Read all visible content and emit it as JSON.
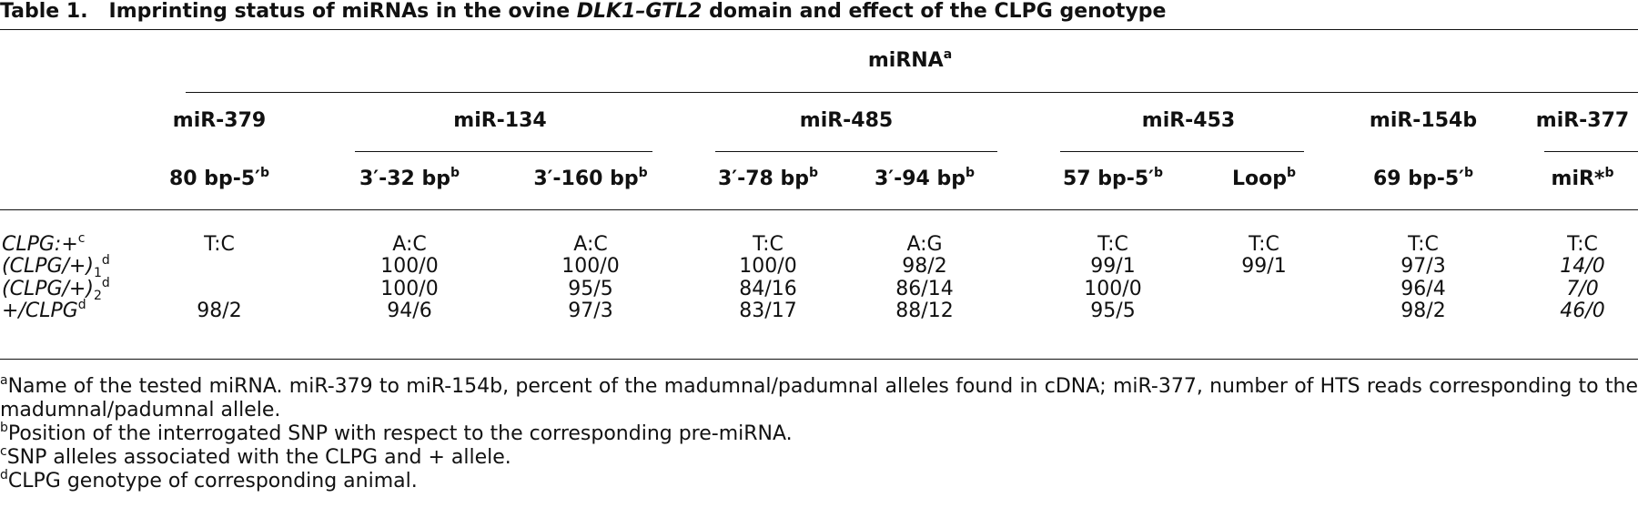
{
  "title": {
    "label": "Table 1.",
    "parts": [
      "Imprinting status of miRNAs in the ovine ",
      "DLK1–GTL2",
      " domain and effect of the CLPG genotype"
    ]
  },
  "table": {
    "spanner": {
      "text": "miRNA",
      "note": "a"
    },
    "groups": [
      {
        "name": "miR-379",
        "columns": [
          {
            "text": "80 bp-5′",
            "note": "b"
          }
        ]
      },
      {
        "name": "miR-134",
        "columns": [
          {
            "text": "3′-32 bp",
            "note": "b"
          },
          {
            "text": "3′-160 bp",
            "note": "b"
          }
        ]
      },
      {
        "name": "miR-485",
        "columns": [
          {
            "text": "3′-78 bp",
            "note": "b"
          },
          {
            "text": "3′-94 bp",
            "note": "b"
          }
        ]
      },
      {
        "name": "miR-453",
        "columns": [
          {
            "text": "57 bp-5′",
            "note": "b"
          },
          {
            "text": "Loop",
            "note": "b"
          }
        ]
      },
      {
        "name": "miR-154b",
        "columns": [
          {
            "text": "69 bp-5′",
            "note": "b"
          }
        ]
      },
      {
        "name": "miR-377",
        "columns": [
          {
            "text": "miR*",
            "note": "b"
          }
        ]
      }
    ],
    "rows": [
      {
        "label": {
          "main": "CLPG:+",
          "note": "c"
        },
        "cells": [
          "T:C",
          "A:C",
          "A:C",
          "T:C",
          "A:G",
          "T:C",
          "T:C",
          "T:C",
          "T:C"
        ]
      },
      {
        "label": {
          "main": "(CLPG/+)",
          "sub": "1",
          "note": "d"
        },
        "cells": [
          null,
          "100/0",
          "100/0",
          "100/0",
          "98/2",
          "99/1",
          "99/1",
          "97/3",
          "14/0"
        ]
      },
      {
        "label": {
          "main": "(CLPG/+)",
          "sub": "2",
          "note": "d"
        },
        "cells": [
          null,
          "100/0",
          "95/5",
          "84/16",
          "86/14",
          "100/0",
          null,
          "96/4",
          "7/0"
        ]
      },
      {
        "label": {
          "main": "+/CLPG",
          "note": "d"
        },
        "cells": [
          "98/2",
          "94/6",
          "97/3",
          "83/17",
          "88/12",
          "95/5",
          null,
          "98/2",
          "46/0"
        ]
      }
    ]
  },
  "footnotes": [
    {
      "mark": "a",
      "text": "Name of the tested miRNA. miR-379 to miR-154b, percent of the madumnal/padumnal alleles found in cDNA; miR-377, number of HTS reads corresponding to the madumnal/padumnal allele."
    },
    {
      "mark": "b",
      "text": "Position of the interrogated SNP with respect to the corresponding pre-miRNA."
    },
    {
      "mark": "c",
      "text": "SNP alleles associated with the CLPG and + allele."
    },
    {
      "mark": "d",
      "text": "CLPG genotype of corresponding animal."
    }
  ]
}
